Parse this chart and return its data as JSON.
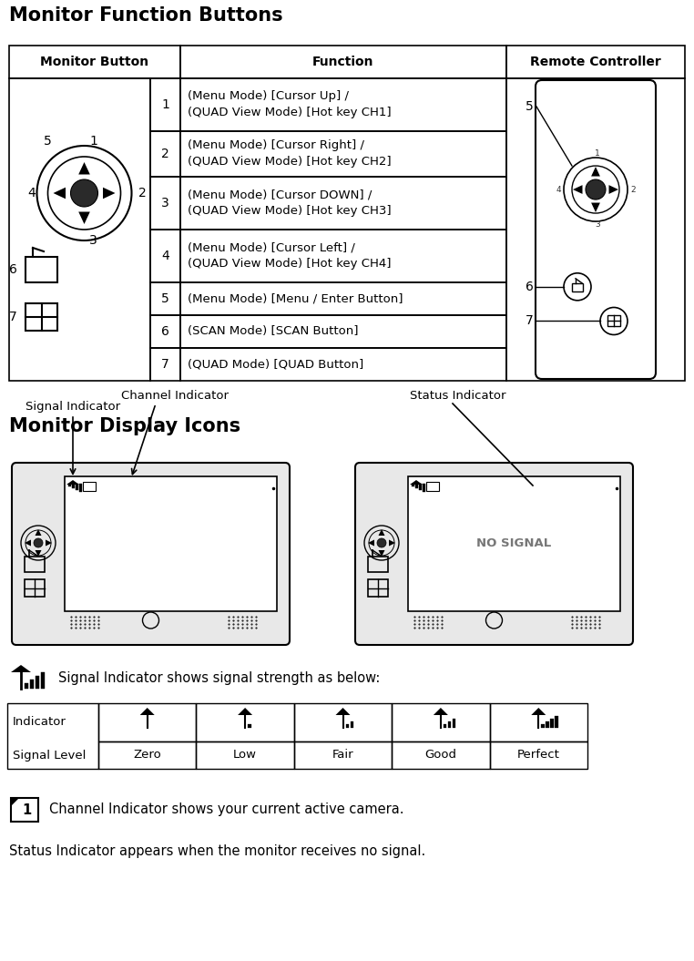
{
  "title": "Monitor Function Buttons",
  "title2": "Monitor Display Icons",
  "rows": [
    {
      "num": "1",
      "line1": "(Menu Mode) [Cursor Up] /",
      "line2": "(QUAD View Mode) [Hot key CH1]"
    },
    {
      "num": "2",
      "line1": "(Menu Mode) [Cursor Right] /",
      "line2": "(QUAD View Mode) [Hot key CH2]"
    },
    {
      "num": "3",
      "line1": "(Menu Mode) [Cursor DOWN] /",
      "line2": "(QUAD View Mode) [Hot key CH3]"
    },
    {
      "num": "4",
      "line1": "(Menu Mode) [Cursor Left] /",
      "line2": "(QUAD View Mode) [Hot key CH4]"
    },
    {
      "num": "5",
      "line1": "(Menu Mode) [Menu / Enter Button]",
      "line2": null
    },
    {
      "num": "6",
      "line1": "(SCAN Mode) [SCAN Button]",
      "line2": null
    },
    {
      "num": "7",
      "line1": "(QUAD Mode) [QUAD Button]",
      "line2": null
    }
  ],
  "signal_text": "Signal Indicator shows signal strength as below:",
  "signal_levels": [
    "Zero",
    "Low",
    "Fair",
    "Good",
    "Perfect"
  ],
  "channel_text": "Channel Indicator shows your current active camera.",
  "status_text": "Status Indicator appears when the monitor receives no signal.",
  "signal_indicator_label": "Signal Indicator",
  "channel_indicator_label": "Channel Indicator",
  "status_indicator_label": "Status Indicator",
  "bg_color": "#ffffff"
}
